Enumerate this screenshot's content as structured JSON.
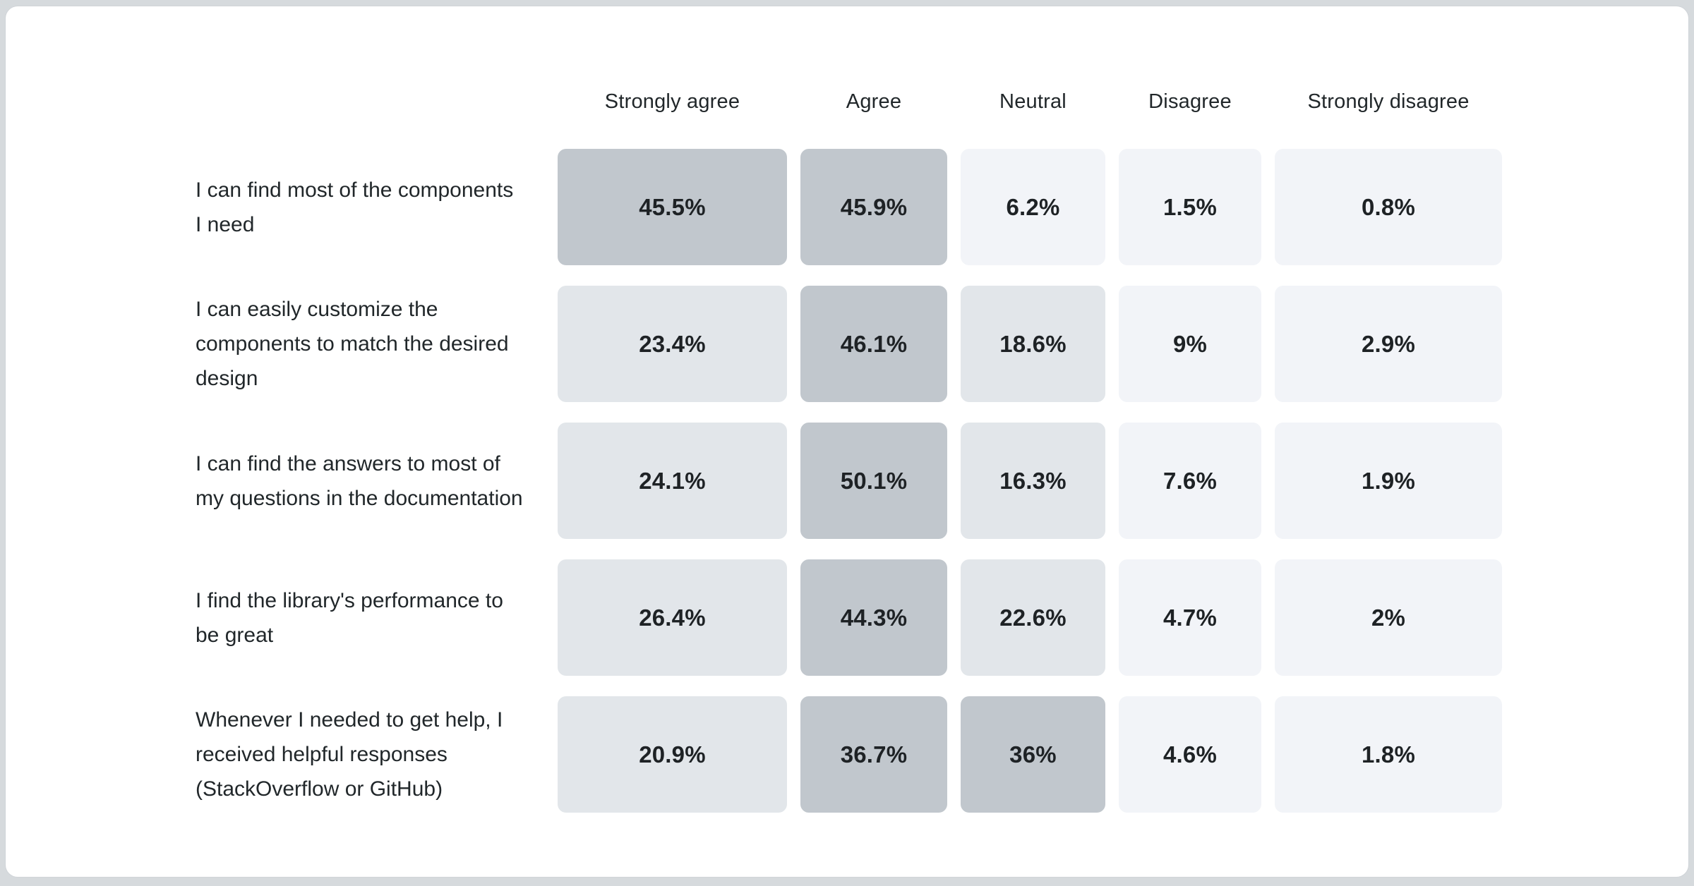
{
  "page": {
    "background": "#d6dadd",
    "card_background": "#ffffff"
  },
  "text_colors": {
    "header": "#21272a",
    "row_label": "#21272a",
    "cell_value": "#1e2225"
  },
  "chart_data": {
    "type": "heatmap",
    "columns": [
      "Strongly agree",
      "Agree",
      "Neutral",
      "Disagree",
      "Strongly disagree"
    ],
    "rows": [
      {
        "label": "I can find most of the components I need",
        "values": [
          45.5,
          45.9,
          6.2,
          1.5,
          0.8
        ],
        "display": [
          "45.5%",
          "45.9%",
          "6.2%",
          "1.5%",
          "0.8%"
        ]
      },
      {
        "label": "I can easily customize the components to match the desired design",
        "values": [
          23.4,
          46.1,
          18.6,
          9,
          2.9
        ],
        "display": [
          "23.4%",
          "46.1%",
          "18.6%",
          "9%",
          "2.9%"
        ]
      },
      {
        "label": "I can find the answers to most of my questions in the documentation",
        "values": [
          24.1,
          50.1,
          16.3,
          7.6,
          1.9
        ],
        "display": [
          "24.1%",
          "50.1%",
          "16.3%",
          "7.6%",
          "1.9%"
        ]
      },
      {
        "label": "I find the library's performance to be great",
        "values": [
          26.4,
          44.3,
          22.6,
          4.7,
          2
        ],
        "display": [
          "26.4%",
          "44.3%",
          "22.6%",
          "4.7%",
          "2%"
        ]
      },
      {
        "label": "Whenever I needed to get help, I received helpful responses (StackOverflow or GitHub)",
        "values": [
          20.9,
          36.7,
          36,
          4.6,
          1.8
        ],
        "display": [
          "20.9%",
          "36.7%",
          "36%",
          "4.6%",
          "1.8%"
        ]
      }
    ],
    "color_scale": {
      "high": {
        "min": 30,
        "color": "#c1c7cd"
      },
      "mid": {
        "min": 10,
        "color": "#e2e6ea"
      },
      "low": {
        "min": 0,
        "color": "#f2f4f8"
      }
    },
    "legend_position": "none",
    "grid": false
  }
}
